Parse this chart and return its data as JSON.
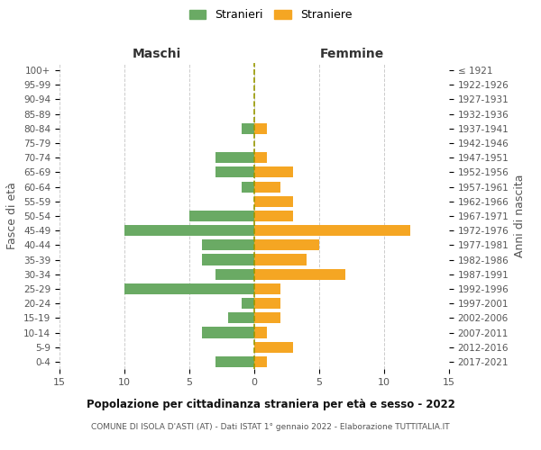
{
  "age_groups": [
    "0-4",
    "5-9",
    "10-14",
    "15-19",
    "20-24",
    "25-29",
    "30-34",
    "35-39",
    "40-44",
    "45-49",
    "50-54",
    "55-59",
    "60-64",
    "65-69",
    "70-74",
    "75-79",
    "80-84",
    "85-89",
    "90-94",
    "95-99",
    "100+"
  ],
  "birth_years": [
    "2017-2021",
    "2012-2016",
    "2007-2011",
    "2002-2006",
    "1997-2001",
    "1992-1996",
    "1987-1991",
    "1982-1986",
    "1977-1981",
    "1972-1976",
    "1967-1971",
    "1962-1966",
    "1957-1961",
    "1952-1956",
    "1947-1951",
    "1942-1946",
    "1937-1941",
    "1932-1936",
    "1927-1931",
    "1922-1926",
    "≤ 1921"
  ],
  "maschi": [
    3,
    0,
    4,
    2,
    1,
    10,
    3,
    4,
    4,
    10,
    5,
    0,
    1,
    3,
    3,
    0,
    1,
    0,
    0,
    0,
    0
  ],
  "femmine": [
    1,
    3,
    1,
    2,
    2,
    2,
    7,
    4,
    5,
    12,
    3,
    3,
    2,
    3,
    1,
    0,
    1,
    0,
    0,
    0,
    0
  ],
  "maschi_color": "#6aaa64",
  "femmine_color": "#f5a623",
  "title": "Popolazione per cittadinanza straniera per età e sesso - 2022",
  "subtitle": "COMUNE DI ISOLA D'ASTI (AT) - Dati ISTAT 1° gennaio 2022 - Elaborazione TUTTITALIA.IT",
  "xlabel_left": "Maschi",
  "xlabel_right": "Femmine",
  "ylabel": "Fasce di età",
  "ylabel_right": "Anni di nascita",
  "legend_maschi": "Stranieri",
  "legend_femmine": "Straniere",
  "xlim": 15,
  "background_color": "#ffffff",
  "grid_color": "#cccccc"
}
